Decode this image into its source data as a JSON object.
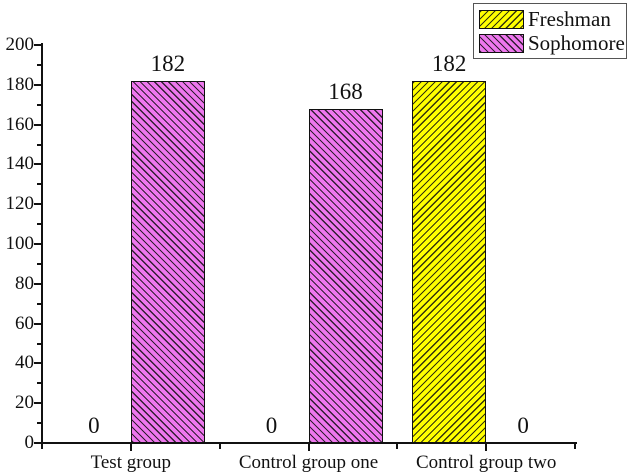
{
  "figure": {
    "background": "#ffffff",
    "axis_color": "#111111"
  },
  "legend": {
    "position": "top-right",
    "items": [
      {
        "label": "Freshman",
        "color": "#FFFF00",
        "hatch": "/"
      },
      {
        "label": "Sophomore",
        "color": "#EE77EE",
        "hatch": "\\"
      }
    ]
  },
  "chart_data": {
    "type": "bar",
    "title": "",
    "xlabel": "",
    "ylabel": "",
    "categories": [
      "Test group",
      "Control group one",
      "Control group two"
    ],
    "series": [
      {
        "name": "Freshman",
        "color": "#FFFF00",
        "hatch": "/",
        "values": [
          0,
          0,
          182
        ]
      },
      {
        "name": "Sophomore",
        "color": "#EE77EE",
        "hatch": "\\",
        "values": [
          182,
          168,
          0
        ]
      }
    ],
    "bar_value_labels": [
      [
        "0",
        "0",
        "182"
      ],
      [
        "182",
        "168",
        "0"
      ]
    ],
    "ylim": [
      0,
      200
    ],
    "y_tick_step_major": 20,
    "y_tick_step_minor": 10,
    "y_tick_labels": [
      "0",
      "20",
      "40",
      "60",
      "80",
      "100",
      "120",
      "140",
      "160",
      "180",
      "200"
    ],
    "grid": false,
    "legend_position": "top-right"
  }
}
